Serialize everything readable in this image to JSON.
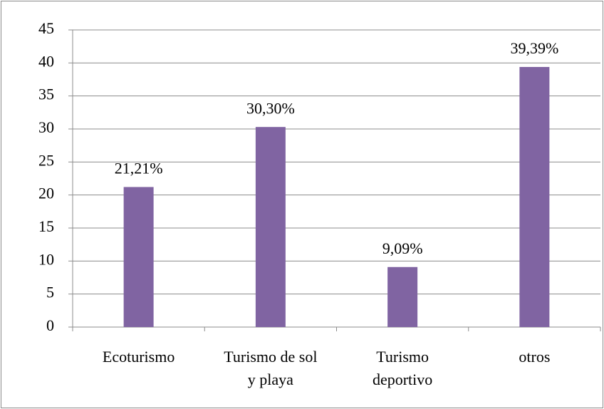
{
  "chart_data": {
    "type": "bar",
    "categories": [
      "Ecoturismo",
      "Turismo de sol\ny playa",
      "Turismo\ndeportivo",
      "otros"
    ],
    "values": [
      21.21,
      30.3,
      9.09,
      39.39
    ],
    "value_labels": [
      "21,21%",
      "30,30%",
      "9,09%",
      "39,39%"
    ],
    "color": "#8064a2",
    "ylim": [
      0,
      45
    ],
    "yticks": [
      0,
      5,
      10,
      15,
      20,
      25,
      30,
      35,
      40,
      45
    ],
    "grid": true
  }
}
